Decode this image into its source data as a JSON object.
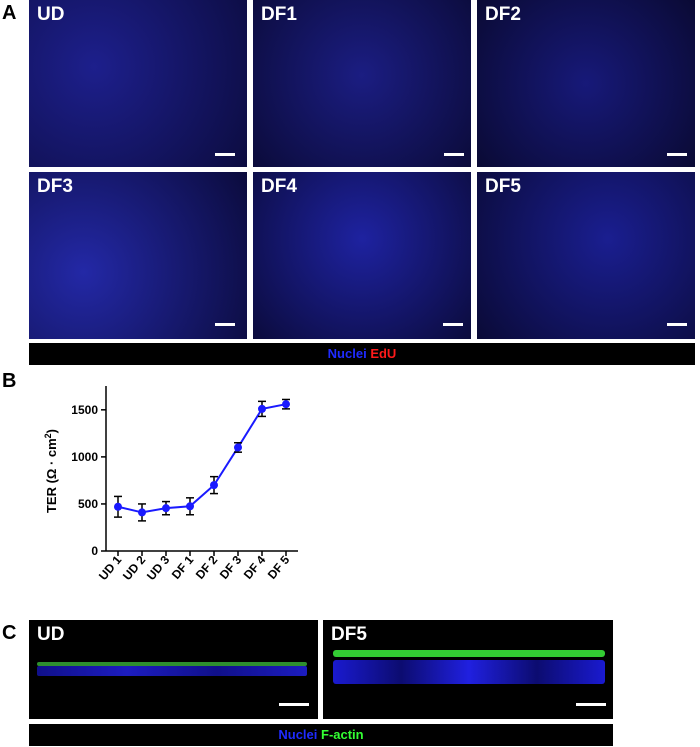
{
  "panel_labels": {
    "a": "A",
    "b": "B",
    "c": "C"
  },
  "panel_a": {
    "tiles": [
      "UD",
      "DF1",
      "DF2",
      "DF3",
      "DF4",
      "DF5"
    ],
    "legend": {
      "nuclei": "Nuclei",
      "edu": "EdU"
    },
    "colors": {
      "nuclei": "#1f2bff",
      "edu": "#ff1a1a"
    }
  },
  "chart_data": {
    "type": "line",
    "categories": [
      "UD 1",
      "UD 2",
      "UD 3",
      "DF 1",
      "DF 2",
      "DF 3",
      "DF 4",
      "DF 5"
    ],
    "series": [
      {
        "values": [
          470,
          410,
          455,
          475,
          700,
          1100,
          1510,
          1560
        ],
        "errors": [
          110,
          90,
          70,
          90,
          90,
          50,
          80,
          50
        ]
      }
    ],
    "ylabel_main": "TER (Ω · cm",
    "ylabel_sup": "2",
    "ylabel_close": ")",
    "yticks": [
      0,
      500,
      1000,
      1500
    ],
    "ylim": [
      0,
      1700
    ],
    "color": "#1a1aff"
  },
  "panel_c": {
    "tiles": [
      "UD",
      "DF5"
    ],
    "legend": {
      "nuclei": "Nuclei",
      "factin": "F-actin"
    },
    "colors": {
      "nuclei": "#1f2bff",
      "factin": "#33ff33"
    }
  }
}
